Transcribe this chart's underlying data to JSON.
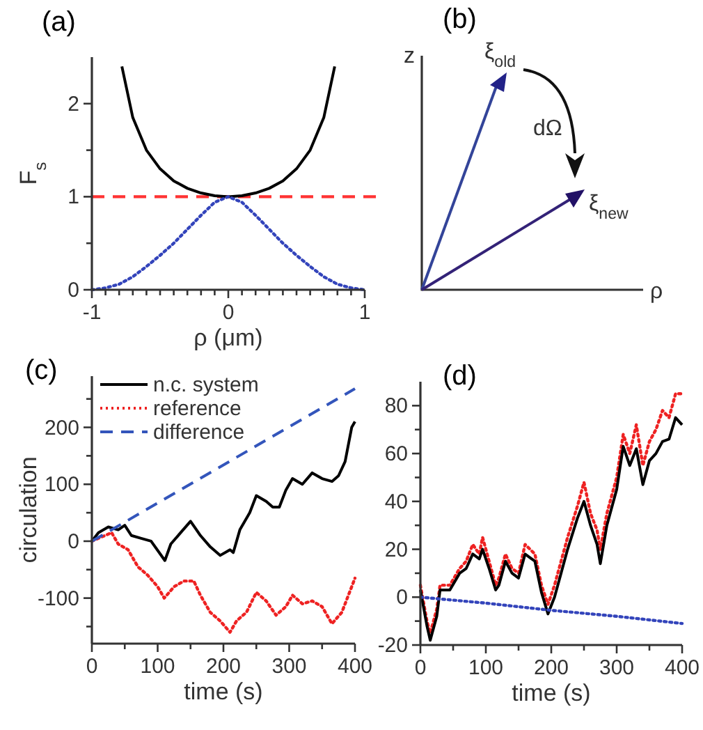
{
  "chart_data": [
    {
      "type": "line",
      "title": "(a)",
      "xlabel": "ρ (μm)",
      "ylabel": "F$_{s}$",
      "xlim": [
        -1,
        1
      ],
      "ylim": [
        0,
        2.5
      ],
      "xticks": [
        -1,
        {
          "value": -0.9,
          "label": null
        },
        {
          "value": -0.8,
          "label": null
        },
        {
          "value": -0.7,
          "label": null
        },
        {
          "value": -0.6,
          "label": null
        },
        {
          "value": -0.5,
          "label": null
        },
        {
          "value": -0.4,
          "label": null
        },
        {
          "value": -0.3,
          "label": null
        },
        {
          "value": -0.2,
          "label": null
        },
        {
          "value": -0.1,
          "label": null
        },
        0,
        {
          "value": 0.1,
          "label": null
        },
        {
          "value": 0.2,
          "label": null
        },
        {
          "value": 0.3,
          "label": null
        },
        {
          "value": 0.4,
          "label": null
        },
        {
          "value": 0.5,
          "label": null
        },
        {
          "value": 0.6,
          "label": null
        },
        {
          "value": 0.7,
          "label": null
        },
        {
          "value": 0.8,
          "label": null
        },
        {
          "value": 0.9,
          "label": null
        },
        1
      ],
      "yticks": [
        0,
        {
          "value": 0.5,
          "label": null
        },
        1,
        {
          "value": 1.5,
          "label": null
        },
        2
      ],
      "grid": false,
      "legend": false,
      "series": [
        {
          "color": "#000000",
          "line_style": "solid",
          "x": [
            -0.78,
            -0.7,
            -0.6,
            -0.5,
            -0.4,
            -0.3,
            -0.2,
            -0.1,
            0,
            0.1,
            0.2,
            0.3,
            0.4,
            0.5,
            0.6,
            0.7,
            0.78
          ],
          "values": [
            2.4,
            1.85,
            1.5,
            1.3,
            1.17,
            1.09,
            1.04,
            1.01,
            1,
            1.01,
            1.04,
            1.09,
            1.17,
            1.3,
            1.5,
            1.85,
            2.4
          ]
        },
        {
          "color": "#3344bb",
          "line_style": "dotted",
          "x": [
            -1,
            -0.9,
            -0.8,
            -0.7,
            -0.6,
            -0.5,
            -0.4,
            -0.3,
            -0.2,
            -0.1,
            0,
            0.1,
            0.2,
            0.3,
            0.4,
            0.5,
            0.6,
            0.7,
            0.8,
            0.9,
            1
          ],
          "values": [
            0,
            0.02,
            0.06,
            0.14,
            0.25,
            0.37,
            0.5,
            0.65,
            0.8,
            0.94,
            1,
            0.94,
            0.8,
            0.65,
            0.5,
            0.37,
            0.25,
            0.14,
            0.06,
            0.02,
            0
          ]
        }
      ],
      "ref_lines": [
        {
          "axis": "y",
          "value": 1,
          "color": "#ff3333",
          "line_style": "dashed"
        }
      ]
    },
    {
      "type": "other",
      "title": "(b)",
      "annotations": [
        "z",
        "ρ",
        "ξ$_{old}$",
        "ξ$_{new}$",
        "dΩ"
      ]
    },
    {
      "type": "line",
      "title": "(c)",
      "xlabel": "time (s)",
      "ylabel": "circulation",
      "xlim": [
        0,
        400
      ],
      "ylim": [
        -180,
        290
      ],
      "xticks": [
        0,
        {
          "value": 50,
          "label": null
        },
        100,
        {
          "value": 150,
          "label": null
        },
        200,
        {
          "value": 250,
          "label": null
        },
        300,
        {
          "value": 350,
          "label": null
        },
        400
      ],
      "yticks": [
        {
          "value": -150,
          "label": null
        },
        -100,
        {
          "value": -50,
          "label": null
        },
        0,
        {
          "value": 50,
          "label": null
        },
        100,
        {
          "value": 150,
          "label": null
        },
        200,
        {
          "value": 250,
          "label": null
        }
      ],
      "grid": false,
      "legend": "top left",
      "series": [
        {
          "name": "n.c. system",
          "color": "#000000",
          "line_style": "solid",
          "x": [
            0,
            10,
            25,
            40,
            50,
            60,
            75,
            90,
            111,
            120,
            135,
            150,
            165,
            180,
            195,
            210,
            215,
            225,
            240,
            250,
            265,
            275,
            285,
            295,
            305,
            320,
            335,
            350,
            365,
            375,
            385,
            395,
            400
          ],
          "values": [
            0,
            15,
            25,
            20,
            28,
            10,
            5,
            0,
            -34,
            -5,
            15,
            35,
            10,
            -10,
            -25,
            -15,
            -20,
            20,
            50,
            80,
            70,
            60,
            60,
            90,
            110,
            100,
            120,
            110,
            105,
            115,
            140,
            200,
            210
          ]
        },
        {
          "name": "reference",
          "color": "#ee2222",
          "line_style": "dotted",
          "x": [
            0,
            20,
            30,
            40,
            55,
            70,
            85,
            100,
            110,
            125,
            140,
            155,
            165,
            180,
            195,
            210,
            220,
            235,
            250,
            265,
            280,
            295,
            305,
            320,
            335,
            350,
            365,
            380,
            395,
            400
          ],
          "values": [
            0,
            10,
            15,
            -5,
            -15,
            -45,
            -60,
            -80,
            -100,
            -80,
            -70,
            -70,
            -95,
            -125,
            -140,
            -160,
            -140,
            -125,
            -90,
            -105,
            -130,
            -115,
            -95,
            -110,
            -105,
            -115,
            -145,
            -125,
            -80,
            -65
          ]
        },
        {
          "name": "difference",
          "color": "#3355bb",
          "line_style": "dashed",
          "x": [
            0,
            400
          ],
          "values": [
            0,
            268
          ]
        }
      ]
    },
    {
      "type": "line",
      "title": "(d)",
      "xlabel": "time (s)",
      "xlim": [
        0,
        400
      ],
      "ylim": [
        -20,
        90
      ],
      "xticks": [
        0,
        {
          "value": 50,
          "label": null
        },
        100,
        {
          "value": 150,
          "label": null
        },
        200,
        {
          "value": 250,
          "label": null
        },
        300,
        {
          "value": 350,
          "label": null
        },
        400
      ],
      "yticks": [
        -20,
        {
          "value": -10,
          "label": null
        },
        0,
        {
          "value": 10,
          "label": null
        },
        20,
        {
          "value": 30,
          "label": null
        },
        40,
        {
          "value": 50,
          "label": null
        },
        60,
        {
          "value": 70,
          "label": null
        },
        80
      ],
      "grid": false,
      "legend": false,
      "series": [
        {
          "color": "#ee2222",
          "line_style": "dotted",
          "x": [
            0,
            10,
            15,
            25,
            30,
            45,
            60,
            70,
            80,
            90,
            95,
            105,
            115,
            120,
            130,
            140,
            150,
            160,
            175,
            185,
            195,
            205,
            215,
            225,
            240,
            250,
            260,
            270,
            275,
            285,
            300,
            310,
            320,
            330,
            340,
            350,
            360,
            370,
            380,
            390,
            400
          ],
          "values": [
            5,
            -10,
            -15,
            -5,
            5,
            5,
            12,
            15,
            22,
            18,
            25,
            15,
            5,
            8,
            18,
            12,
            10,
            22,
            18,
            5,
            -3,
            5,
            15,
            25,
            38,
            48,
            35,
            28,
            20,
            35,
            50,
            68,
            60,
            72,
            55,
            65,
            70,
            78,
            75,
            85,
            85
          ]
        },
        {
          "color": "#000000",
          "line_style": "solid",
          "x": [
            0,
            10,
            15,
            25,
            30,
            45,
            60,
            70,
            80,
            90,
            95,
            105,
            115,
            120,
            130,
            140,
            150,
            160,
            175,
            185,
            195,
            205,
            215,
            225,
            240,
            250,
            260,
            270,
            275,
            285,
            300,
            310,
            320,
            330,
            340,
            350,
            360,
            370,
            380,
            390,
            400
          ],
          "values": [
            3,
            -12,
            -18,
            -8,
            3,
            3,
            10,
            12,
            18,
            16,
            20,
            12,
            3,
            5,
            15,
            10,
            8,
            18,
            15,
            2,
            -7,
            0,
            10,
            20,
            33,
            40,
            30,
            22,
            14,
            30,
            45,
            63,
            55,
            62,
            47,
            57,
            60,
            65,
            66,
            75,
            72
          ]
        },
        {
          "color": "#3344bb",
          "line_style": "dotted",
          "x": [
            0,
            100,
            200,
            300,
            400
          ],
          "values": [
            0,
            -2.5,
            -5.5,
            -8,
            -11
          ]
        }
      ]
    }
  ]
}
